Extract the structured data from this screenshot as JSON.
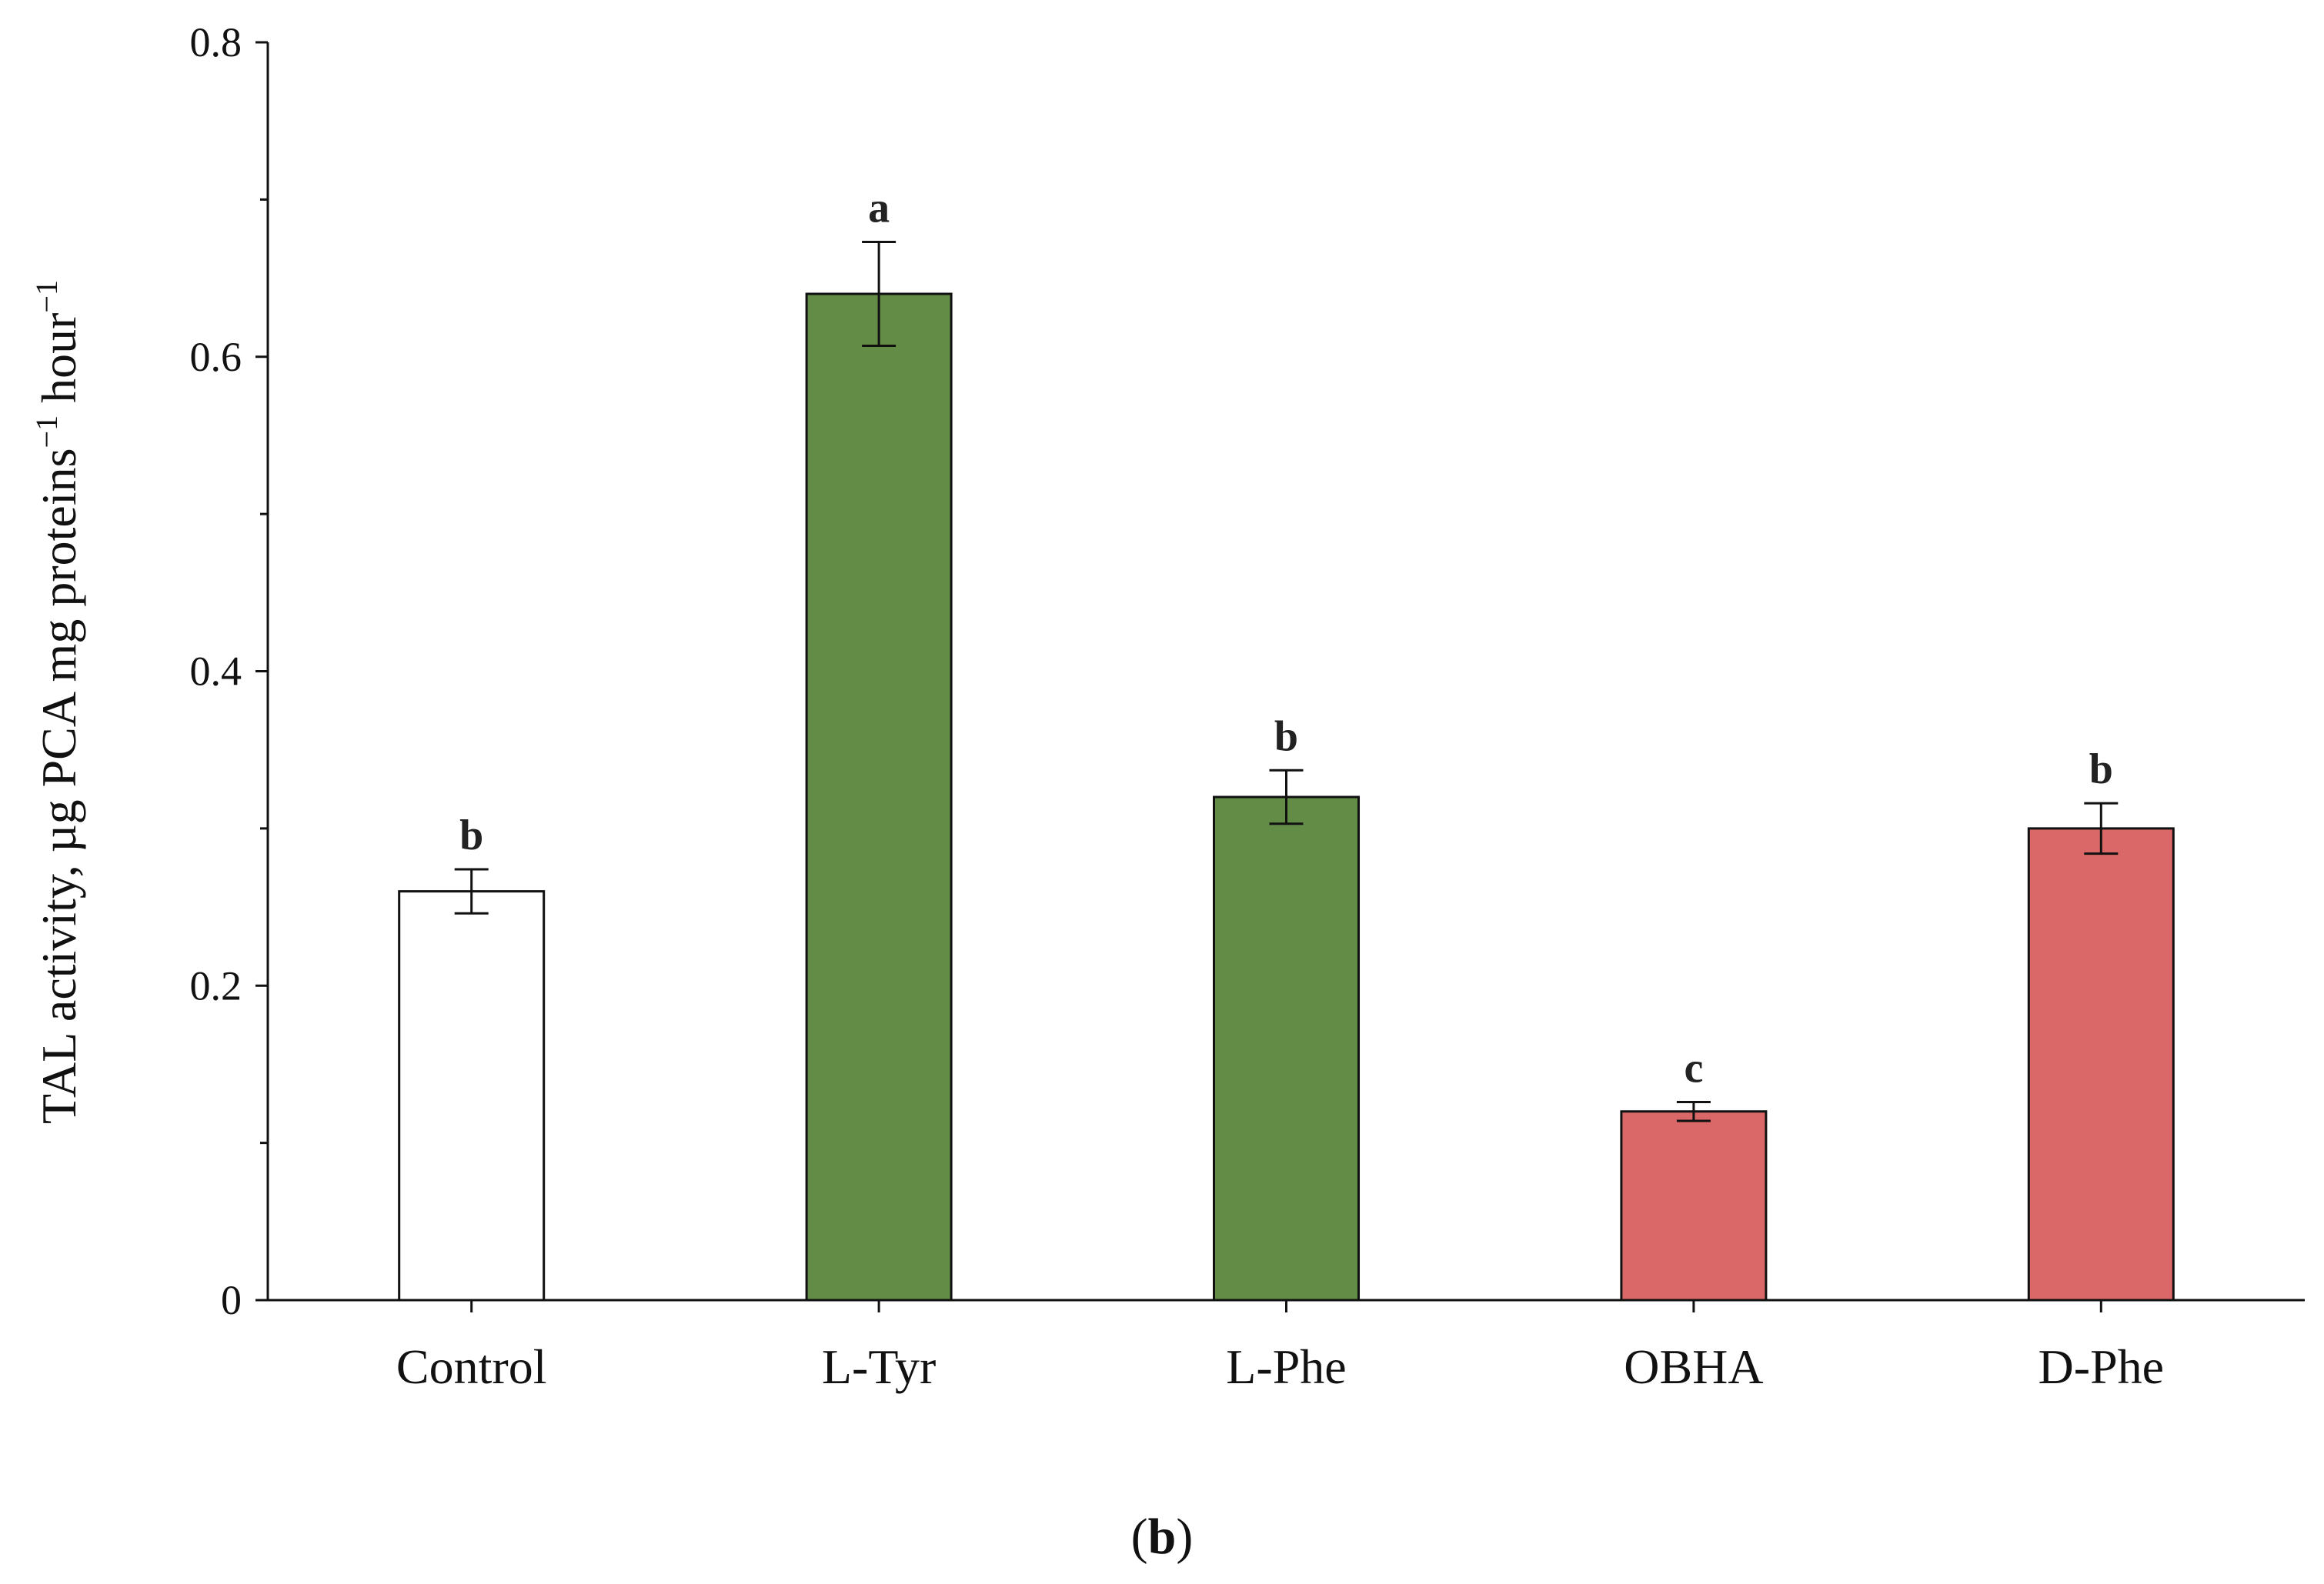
{
  "chart_data": {
    "type": "bar",
    "title": "",
    "ylabel": "TAL activity, µg PCA mg proteins",
    "ylabel_mid": " hour",
    "ylabel_sup": "−1",
    "xlabel": "",
    "ylim": [
      0,
      0.8
    ],
    "yticks": [
      0,
      0.2,
      0.4,
      0.6,
      0.8
    ],
    "ytick_labels": [
      "0",
      "0.2",
      "0.4",
      "0.6",
      "0.8"
    ],
    "yminor": [
      0.1,
      0.3,
      0.5,
      0.7
    ],
    "categories": [
      "Control",
      "L-Tyr",
      "L-Phe",
      "OBHA",
      "D-Phe"
    ],
    "values": [
      0.26,
      0.64,
      0.32,
      0.12,
      0.3
    ],
    "errors": [
      0.014,
      0.033,
      0.017,
      0.006,
      0.016
    ],
    "significance": [
      "b",
      "a",
      "b",
      "c",
      "b"
    ],
    "colors": [
      "#ffffff",
      "#638c47",
      "#638c47",
      "#db6868",
      "#db6868"
    ],
    "edge_color": "#111111"
  },
  "panel": {
    "open": "(",
    "letter": "b",
    "close": ")"
  }
}
